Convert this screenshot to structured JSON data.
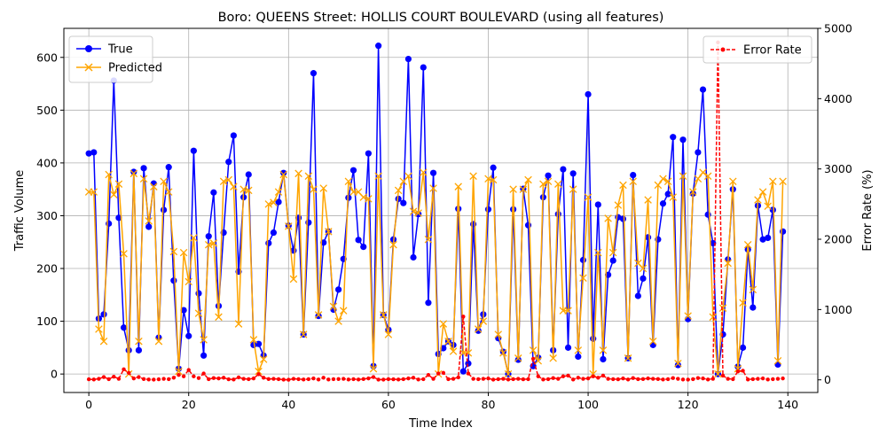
{
  "chart_data": {
    "type": "line",
    "title": "Boro: QUEENS Street: HOLLIS COURT BOULEVARD (using all features)",
    "xlabel": "Time Index",
    "ylabel": "Traffic Volume",
    "y2label": "Error Rate (%)",
    "xlim": [
      -5,
      146
    ],
    "ylim": [
      -35,
      655
    ],
    "y2lim": [
      -180,
      5000
    ],
    "xticks": [
      0,
      20,
      40,
      60,
      80,
      100,
      120,
      140
    ],
    "yticks": [
      0,
      100,
      200,
      300,
      400,
      500,
      600
    ],
    "y2ticks": [
      0,
      1000,
      2000,
      3000,
      4000,
      5000
    ],
    "grid": true,
    "legend_left": {
      "position": "upper-left",
      "entries": [
        "True",
        "Predicted"
      ]
    },
    "legend_right": {
      "position": "upper-right",
      "entries": [
        "Error Rate"
      ]
    },
    "colors": {
      "true": "#0000ff",
      "predicted": "#ffa500",
      "error": "#ff0000"
    },
    "series": [
      {
        "name": "True",
        "axis": "left",
        "style": "solid-circle",
        "values": [
          418,
          420,
          105,
          113,
          285,
          556,
          296,
          88,
          45,
          383,
          45,
          390,
          279,
          361,
          69,
          311,
          392,
          177,
          10,
          121,
          72,
          423,
          153,
          35,
          261,
          344,
          129,
          268,
          402,
          452,
          194,
          335,
          378,
          55,
          57,
          35,
          248,
          268,
          326,
          381,
          281,
          234,
          296,
          75,
          287,
          570,
          110,
          249,
          270,
          122,
          160,
          218,
          334,
          386,
          254,
          241,
          418,
          15,
          622,
          112,
          84,
          255,
          332,
          324,
          597,
          221,
          303,
          581,
          135,
          381,
          38,
          49,
          62,
          55,
          313,
          5,
          20,
          284,
          82,
          113,
          312,
          391,
          68,
          42,
          0,
          312,
          27,
          351,
          282,
          15,
          31,
          335,
          376,
          45,
          303,
          388,
          50,
          380,
          33,
          216,
          530,
          67,
          321,
          28,
          188,
          215,
          297,
          294,
          30,
          377,
          148,
          181,
          259,
          55,
          255,
          323,
          341,
          449,
          17,
          444,
          104,
          342,
          420,
          539,
          302,
          248,
          0,
          75,
          217,
          350,
          14,
          50,
          236,
          126,
          319,
          255,
          258,
          311,
          18,
          270
        ]
      },
      {
        "name": "Predicted",
        "axis": "left",
        "style": "dashed-x",
        "values": [
          345,
          345,
          85,
          62,
          378,
          340,
          360,
          228,
          0,
          380,
          62,
          370,
          290,
          355,
          62,
          365,
          345,
          232,
          5,
          230,
          175,
          258,
          115,
          65,
          245,
          248,
          108,
          365,
          368,
          355,
          95,
          350,
          348,
          65,
          5,
          28,
          322,
          325,
          345,
          378,
          280,
          180,
          380,
          75,
          375,
          350,
          112,
          352,
          270,
          128,
          100,
          120,
          365,
          345,
          345,
          335,
          332,
          10,
          375,
          112,
          75,
          245,
          348,
          365,
          375,
          308,
          305,
          382,
          255,
          352,
          0,
          95,
          62,
          43,
          355,
          40,
          40,
          375,
          85,
          100,
          370,
          368,
          75,
          40,
          0,
          350,
          30,
          350,
          368,
          45,
          25,
          360,
          365,
          30,
          360,
          120,
          120,
          350,
          45,
          182,
          335,
          0,
          230,
          45,
          295,
          230,
          320,
          358,
          30,
          365,
          210,
          200,
          330,
          62,
          358,
          370,
          365,
          335,
          20,
          375,
          110,
          345,
          370,
          382,
          375,
          108,
          0,
          125,
          210,
          365,
          10,
          135,
          245,
          160,
          330,
          345,
          318,
          365,
          25,
          365
        ]
      },
      {
        "name": "Error Rate",
        "axis": "right",
        "style": "dotted-point",
        "values": [
          8,
          5,
          15,
          40,
          10,
          45,
          15,
          150,
          100,
          20,
          40,
          12,
          5,
          3,
          8,
          15,
          10,
          30,
          70,
          50,
          140,
          50,
          25,
          90,
          10,
          25,
          20,
          30,
          8,
          5,
          35,
          15,
          10,
          20,
          80,
          30,
          12,
          15,
          10,
          3,
          2,
          15,
          10,
          5,
          10,
          20,
          5,
          30,
          5,
          10,
          12,
          15,
          5,
          10,
          5,
          12,
          20,
          40,
          3,
          4,
          10,
          8,
          5,
          10,
          20,
          30,
          5,
          10,
          70,
          15,
          90,
          100,
          10,
          15,
          35,
          900,
          90,
          15,
          10,
          15,
          20,
          3,
          10,
          15,
          5,
          10,
          15,
          8,
          10,
          300,
          50,
          5,
          10,
          25,
          15,
          50,
          60,
          5,
          30,
          15,
          20,
          50,
          30,
          60,
          15,
          10,
          8,
          20,
          5,
          25,
          10,
          12,
          20,
          15,
          12,
          5,
          10,
          25,
          15,
          5,
          3,
          10,
          25,
          20,
          5,
          15,
          4800,
          60,
          15,
          10,
          120,
          130,
          5,
          10,
          15,
          20,
          5,
          10,
          15,
          20
        ]
      }
    ]
  }
}
